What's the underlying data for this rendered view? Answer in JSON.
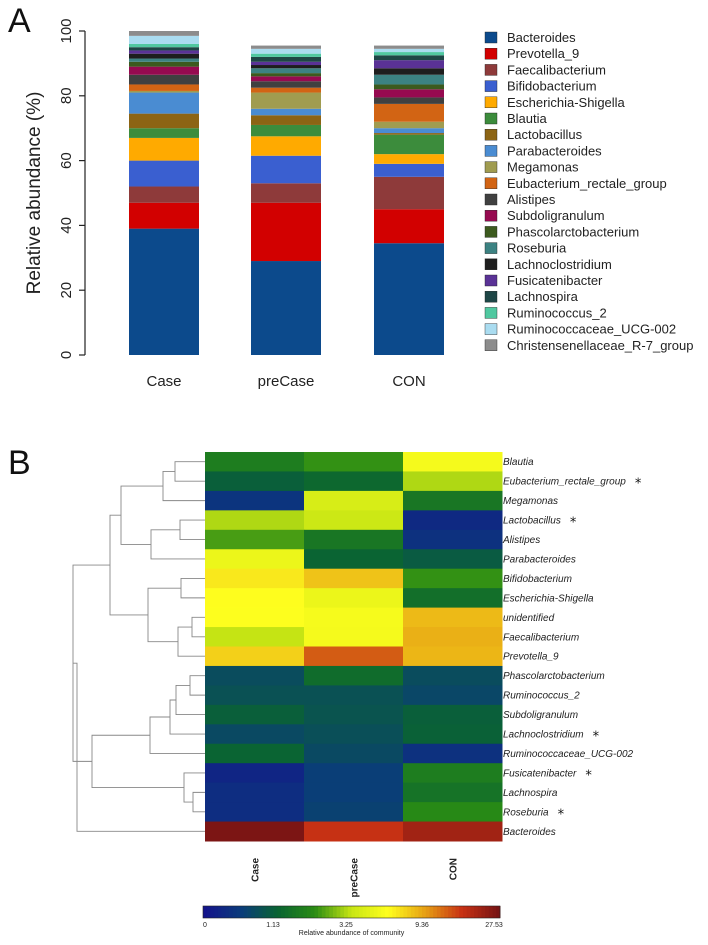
{
  "panels": {
    "a": "A",
    "b": "B"
  },
  "chart_data": [
    {
      "type": "bar",
      "stacked": true,
      "ylabel": "Relative abundance (%)",
      "ylim": [
        0,
        100
      ],
      "yticks": [
        0,
        20,
        40,
        60,
        80,
        100
      ],
      "categories": [
        "Case",
        "preCase",
        "CON"
      ],
      "series": [
        {
          "name": "Bacteroides",
          "color": "#0c4a8c",
          "values": [
            39,
            29,
            34.5
          ]
        },
        {
          "name": "Prevotella_9",
          "color": "#d20000",
          "values": [
            8,
            18,
            10.5
          ]
        },
        {
          "name": "Faecalibacterium",
          "color": "#8e3a3a",
          "values": [
            5,
            6,
            10
          ]
        },
        {
          "name": "Bifidobacterium",
          "color": "#3a5fd0",
          "values": [
            8,
            8.5,
            4
          ]
        },
        {
          "name": "Escherichia-Shigella",
          "color": "#ffaa00",
          "values": [
            7,
            6,
            3
          ]
        },
        {
          "name": "Blautia",
          "color": "#3c8c3c",
          "values": [
            3,
            3.5,
            6
          ]
        },
        {
          "name": "Lactobacillus",
          "color": "#8c6414",
          "values": [
            4.5,
            3,
            0.5
          ]
        },
        {
          "name": "Parabacteroides",
          "color": "#4a8cd2",
          "values": [
            6.5,
            2,
            1.5
          ]
        },
        {
          "name": "Megamonas",
          "color": "#a09c50",
          "values": [
            0.5,
            5,
            2
          ]
        },
        {
          "name": "Eubacterium_rectale_group",
          "color": "#d26414",
          "values": [
            2,
            1.5,
            5.5
          ]
        },
        {
          "name": "Alistipes",
          "color": "#404040",
          "values": [
            3,
            2,
            2
          ]
        },
        {
          "name": "Subdoligranulum",
          "color": "#960a50",
          "values": [
            2.5,
            1.5,
            2.5
          ]
        },
        {
          "name": "Phascolarctobacterium",
          "color": "#3c5a1e",
          "values": [
            1.5,
            1,
            1.5
          ]
        },
        {
          "name": "Roseburia",
          "color": "#3c8282",
          "values": [
            1,
            1.5,
            3
          ]
        },
        {
          "name": "Lachnoclostridium",
          "color": "#1e1e1e",
          "values": [
            1.5,
            1,
            2
          ]
        },
        {
          "name": "Fusicatenibacter",
          "color": "#5a3296",
          "values": [
            1,
            1,
            2.5
          ]
        },
        {
          "name": "Lachnospira",
          "color": "#1e4646",
          "values": [
            1,
            1.5,
            1.5
          ]
        },
        {
          "name": "Ruminococcus_2",
          "color": "#50c8a0",
          "values": [
            1,
            1,
            1
          ]
        },
        {
          "name": "Ruminococcaceae_UCG-002",
          "color": "#aadcf0",
          "values": [
            2.5,
            1.5,
            1
          ]
        },
        {
          "name": "Christensenellaceae_R-7_group",
          "color": "#8c8c8c",
          "values": [
            1.5,
            1,
            1
          ]
        }
      ]
    },
    {
      "type": "heatmap",
      "columns": [
        "Case",
        "preCase",
        "CON"
      ],
      "rows": [
        {
          "name": "Blautia",
          "star": false,
          "values": [
            2.0,
            2.6,
            6.5
          ]
        },
        {
          "name": "Eubacterium_rectale_group",
          "star": true,
          "values": [
            1.2,
            1.4,
            4.0
          ]
        },
        {
          "name": "Megamonas",
          "star": false,
          "values": [
            0.4,
            5.0,
            1.8
          ]
        },
        {
          "name": "Lactobacillus",
          "star": true,
          "values": [
            4.0,
            4.5,
            0.25
          ]
        },
        {
          "name": "Alistipes",
          "star": false,
          "values": [
            2.8,
            1.8,
            0.35
          ]
        },
        {
          "name": "Parabacteroides",
          "star": false,
          "values": [
            6.0,
            1.3,
            1.1
          ]
        },
        {
          "name": "Bifidobacterium",
          "star": false,
          "values": [
            8.0,
            9.6,
            2.6
          ]
        },
        {
          "name": "Escherichia-Shigella",
          "star": false,
          "values": [
            7.2,
            6.0,
            1.6
          ]
        },
        {
          "name": "unidentified",
          "star": false,
          "values": [
            7.0,
            6.6,
            10.0
          ]
        },
        {
          "name": "Faecalibacterium",
          "star": false,
          "values": [
            4.3,
            6.5,
            10.5
          ]
        },
        {
          "name": "Prevotella_9",
          "star": false,
          "values": [
            9.0,
            15.0,
            10.2
          ]
        },
        {
          "name": "Phascolarctobacterium",
          "star": false,
          "values": [
            0.8,
            1.5,
            0.8
          ]
        },
        {
          "name": "Ruminococcus_2",
          "star": false,
          "values": [
            0.9,
            0.9,
            0.7
          ]
        },
        {
          "name": "Subdoligranulum",
          "star": false,
          "values": [
            1.2,
            0.95,
            1.2
          ]
        },
        {
          "name": "Lachnoclostridium",
          "star": true,
          "values": [
            0.75,
            0.85,
            1.25
          ]
        },
        {
          "name": "Ruminococcaceae_UCG-002",
          "star": false,
          "values": [
            1.3,
            0.75,
            0.35
          ]
        },
        {
          "name": "Fusicatenibacter",
          "star": true,
          "values": [
            0.2,
            0.55,
            2.0
          ]
        },
        {
          "name": "Lachnospira",
          "star": false,
          "values": [
            0.3,
            0.55,
            1.7
          ]
        },
        {
          "name": "Roseburia",
          "star": true,
          "values": [
            0.3,
            0.6,
            2.4
          ]
        },
        {
          "name": "Bacteroides",
          "star": false,
          "values": [
            27.0,
            18.0,
            22.0
          ]
        }
      ],
      "colorbar": {
        "title": "Relative abundance of community",
        "ticks": [
          0,
          1.13,
          3.25,
          9.36,
          27.53
        ],
        "tick_labels": [
          "0",
          "1.13",
          "3.25",
          "9.36",
          "27.53"
        ],
        "stops": [
          "#14148c",
          "#0a3c7a",
          "#0a6432",
          "#2a8c14",
          "#c8e614",
          "#ffff1e",
          "#e6a014",
          "#c83214",
          "#781414"
        ]
      }
    }
  ],
  "star_symbol": "*"
}
